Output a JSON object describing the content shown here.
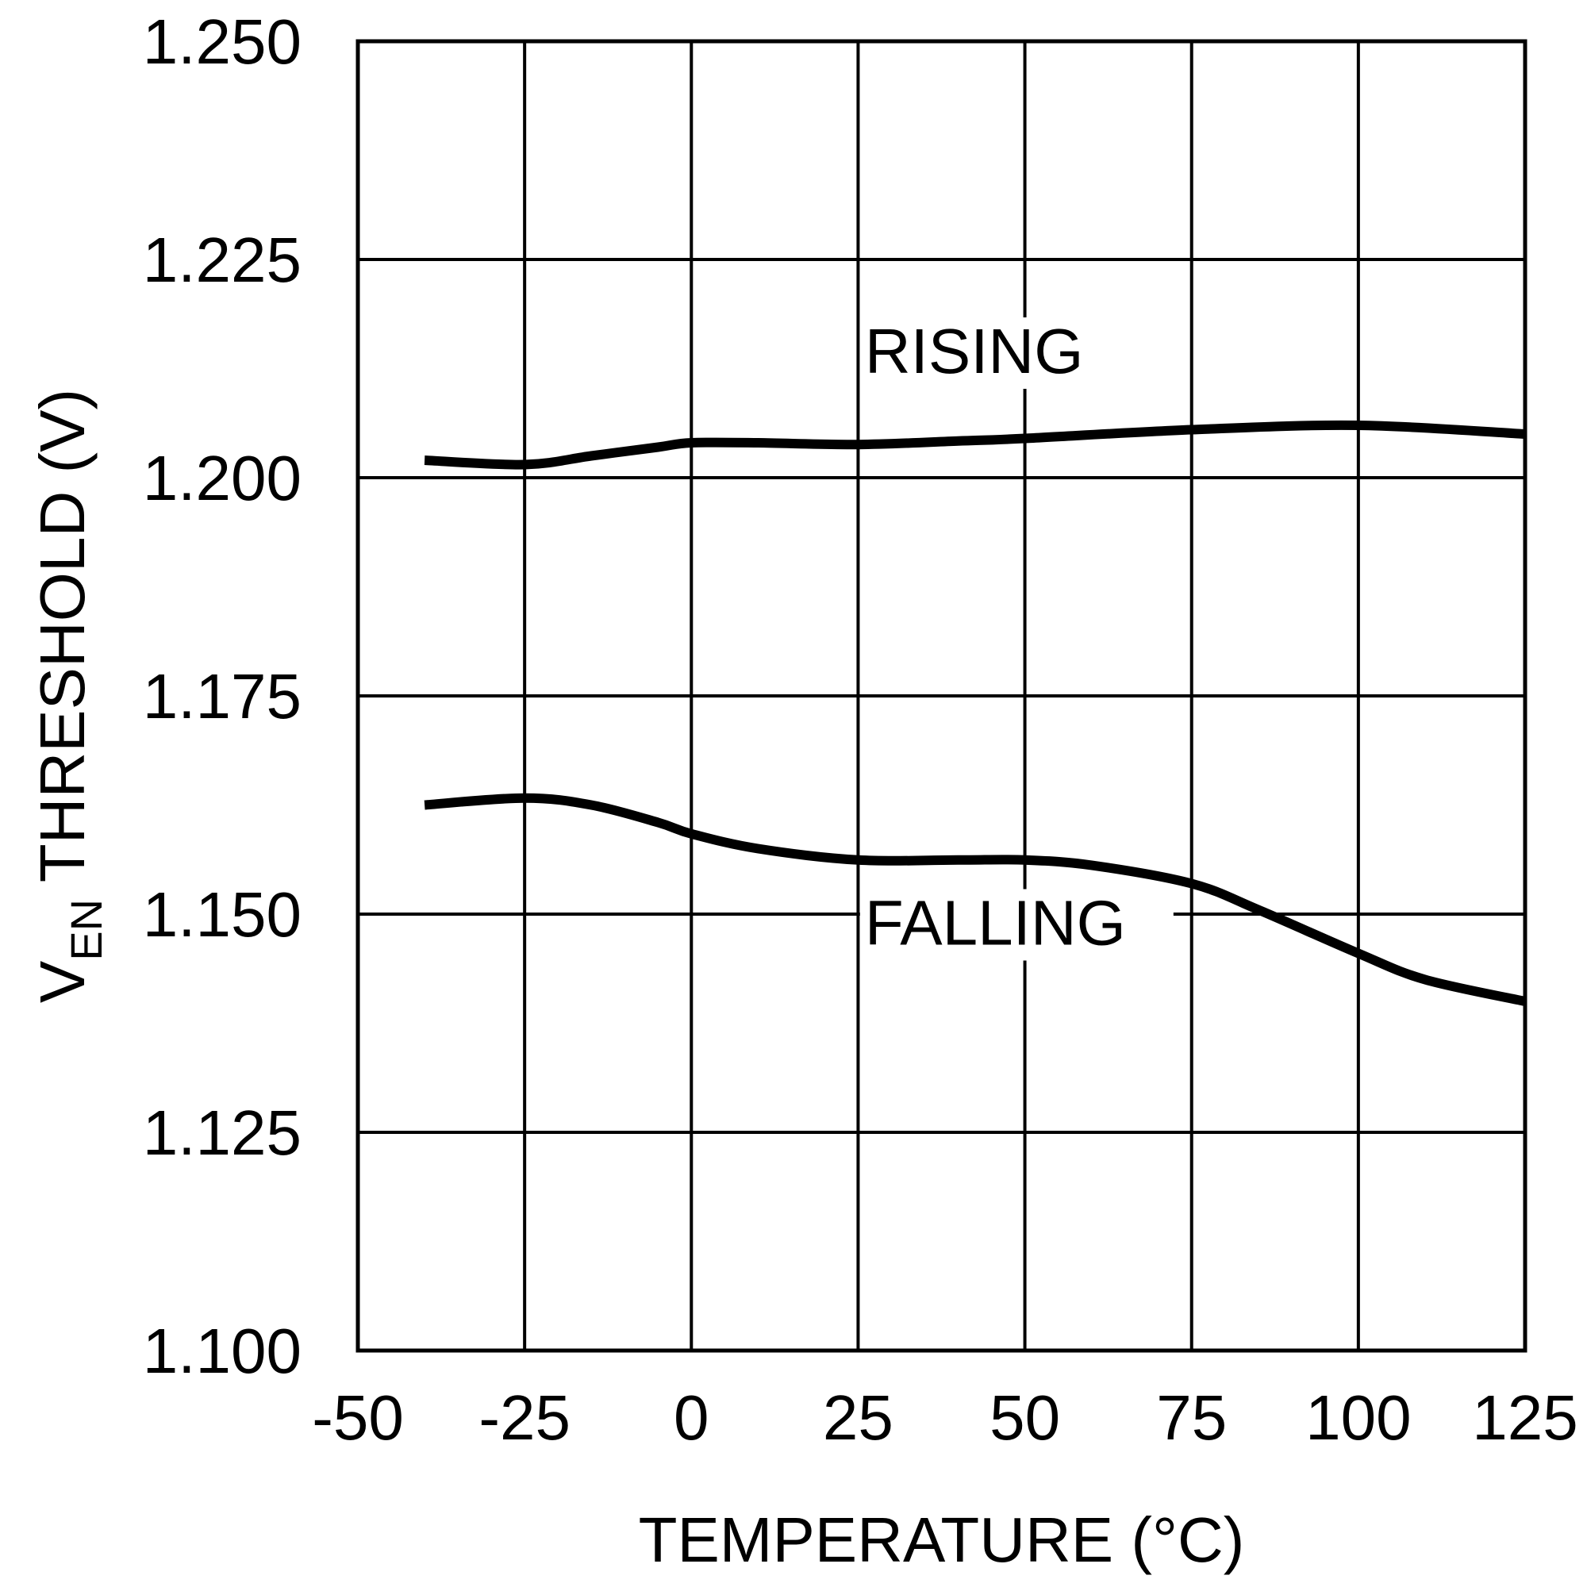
{
  "chart_data": {
    "type": "line",
    "title": "",
    "xlabel": "TEMPERATURE (°C)",
    "ylabel": {
      "prefix": "V",
      "subscript": "EN",
      "suffix": " THRESHOLD (V)"
    },
    "xlim": [
      -50,
      125
    ],
    "ylim": [
      1.1,
      1.25
    ],
    "xticks": [
      -50,
      -25,
      0,
      25,
      50,
      75,
      100,
      125
    ],
    "xtick_labels": [
      "-50",
      "-25",
      "0",
      "25",
      "50",
      "75",
      "100",
      "125"
    ],
    "yticks": [
      1.1,
      1.125,
      1.15,
      1.175,
      1.2,
      1.225,
      1.25
    ],
    "ytick_labels": [
      "1.100",
      "1.125",
      "1.150",
      "1.175",
      "1.200",
      "1.225",
      "1.250"
    ],
    "grid": true,
    "series": [
      {
        "name": "RISING",
        "x": [
          -40,
          -25,
          -15,
          -5,
          0,
          10,
          25,
          40,
          50,
          75,
          100,
          125
        ],
        "y": [
          1.202,
          1.2015,
          1.2025,
          1.2035,
          1.204,
          1.204,
          1.2038,
          1.2042,
          1.2045,
          1.2055,
          1.206,
          1.205
        ]
      },
      {
        "name": "FALLING",
        "x": [
          -40,
          -25,
          -15,
          -5,
          0,
          10,
          25,
          40,
          50,
          60,
          75,
          85,
          100,
          110,
          125
        ],
        "y": [
          1.1625,
          1.1633,
          1.1625,
          1.1605,
          1.1592,
          1.1575,
          1.1562,
          1.1562,
          1.1562,
          1.1556,
          1.1535,
          1.1505,
          1.1455,
          1.1425,
          1.14
        ]
      }
    ],
    "annotations": [
      {
        "series": "RISING",
        "text": "RISING",
        "x": 26,
        "y": 1.212
      },
      {
        "series": "FALLING",
        "text": "FALLING",
        "x": 26,
        "y": 1.1465
      }
    ]
  }
}
